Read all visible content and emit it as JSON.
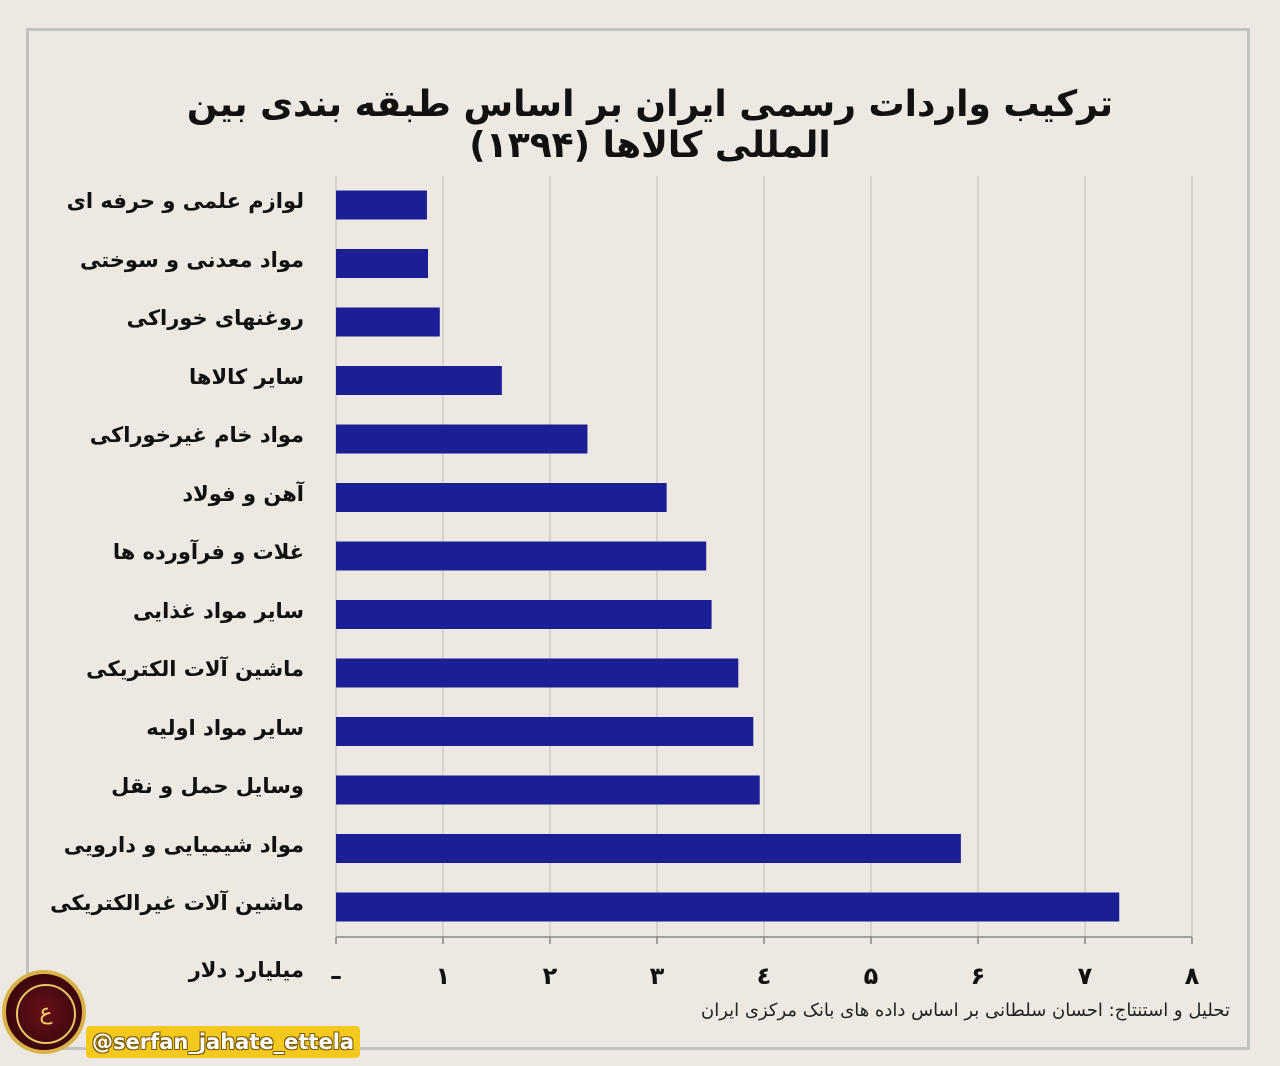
{
  "chart_data": {
    "type": "bar",
    "orientation": "horizontal",
    "title": "ترکیب واردات رسمی ایران بر اساس طبقه بندی بین المللی کالاها (۱۳۹۴)",
    "unit_label": "میلیارد دلار",
    "categories": [
      "لوازم علمی و حرفه ای",
      "مواد معدنی و سوختی",
      "روغنهای خوراکی",
      "سایر کالاها",
      "مواد خام غیرخوراکی",
      "آهن و فولاد",
      "غلات و فرآورده ها",
      "سایر مواد غذایی",
      "ماشین آلات الکتریکی",
      "سایر مواد اولیه",
      "وسایل حمل و نقل",
      "مواد شیمیایی و دارویی",
      "ماشین آلات غیرالکتریکی"
    ],
    "values": [
      0.85,
      0.86,
      0.97,
      1.55,
      2.35,
      3.09,
      3.46,
      3.51,
      3.76,
      3.9,
      3.96,
      5.84,
      7.32
    ],
    "xlim": [
      0,
      8
    ],
    "tick_labels": [
      "–",
      "۱",
      "۲",
      "۳",
      "٤",
      "۵",
      "۶",
      "۷",
      "۸"
    ],
    "grid": true,
    "bar_color": "#1c1e96"
  },
  "source": "تحلیل و استنتاج: احسان سلطانی بر اساس داده های بانک مرکزی ایران",
  "watermark": {
    "handle": "@serfan_jahate_ettela",
    "logo_text": "ع"
  }
}
